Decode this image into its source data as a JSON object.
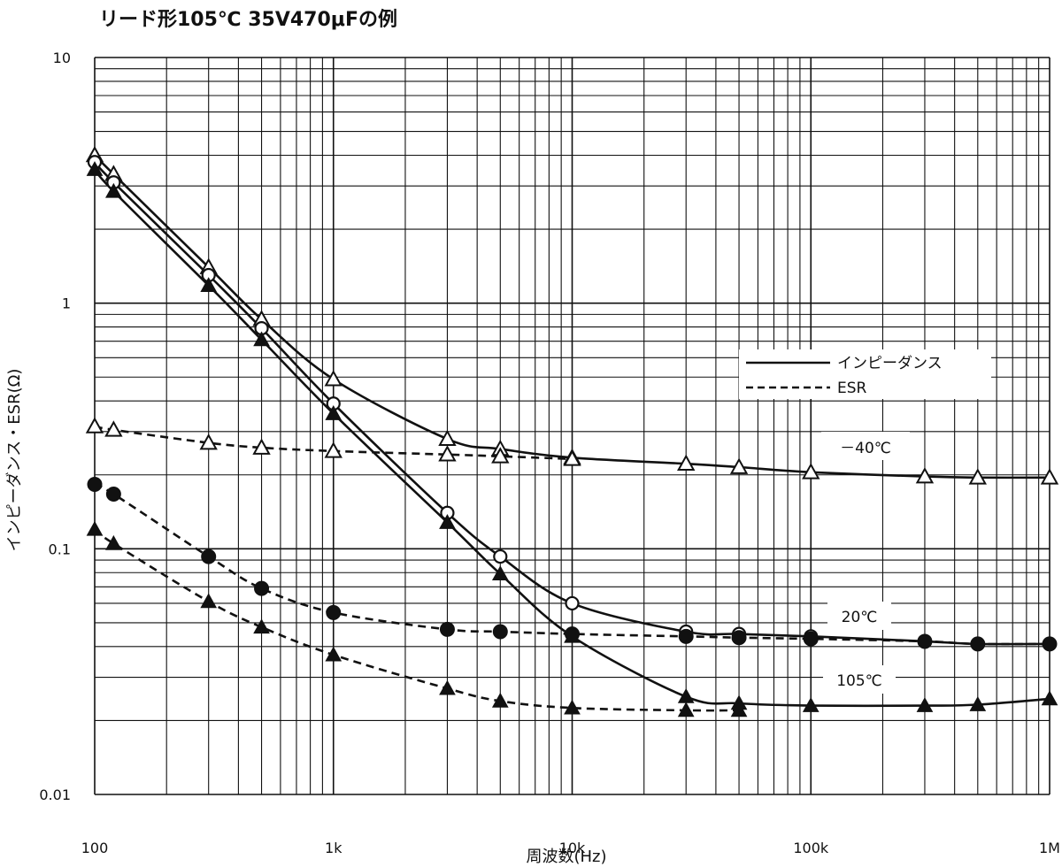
{
  "chart_data": {
    "type": "line",
    "title": "リード形105℃ 35V470μFの例",
    "xlabel": "周波数(Hz)",
    "ylabel": "インピーダンス・ESR(Ω)",
    "x_scale": "log",
    "y_scale": "log",
    "xlim": [
      100,
      1000000
    ],
    "ylim": [
      0.01,
      10
    ],
    "x_tick_values": [
      100,
      1000,
      10000,
      100000,
      1000000
    ],
    "x_tick_labels": [
      "100",
      "1k",
      "10k",
      "100k",
      "1M"
    ],
    "y_tick_values": [
      0.01,
      0.1,
      1,
      10
    ],
    "y_tick_labels": [
      "0.01",
      "0.1",
      "1",
      "10"
    ],
    "grid": true,
    "legend": {
      "position": "right",
      "entries": [
        {
          "label": "インピーダンス",
          "style": "solid"
        },
        {
          "label": "ESR",
          "style": "dashed"
        }
      ]
    },
    "annotations": [
      "－40℃",
      "20℃",
      "105℃"
    ],
    "series": [
      {
        "temperature": "－40℃",
        "kind": "impedance",
        "style": "solid",
        "marker": "triangle-open",
        "x": [
          100,
          120,
          300,
          500,
          1000,
          3000,
          5000,
          10000,
          30000,
          50000,
          100000,
          300000,
          500000,
          1000000
        ],
        "y": [
          4.0,
          3.35,
          1.4,
          0.86,
          0.49,
          0.28,
          0.255,
          0.235,
          0.222,
          0.215,
          0.205,
          0.197,
          0.195,
          0.195
        ]
      },
      {
        "temperature": "－40℃",
        "kind": "esr",
        "style": "dashed",
        "marker": "triangle-open",
        "x": [
          100,
          120,
          300,
          500,
          1000,
          3000,
          5000,
          10000
        ],
        "y": [
          0.315,
          0.305,
          0.27,
          0.258,
          0.25,
          0.242,
          0.238,
          0.232
        ]
      },
      {
        "temperature": "20℃",
        "kind": "impedance",
        "style": "solid",
        "marker": "circle-open",
        "x": [
          100,
          120,
          300,
          500,
          1000,
          3000,
          5000,
          10000,
          30000,
          50000,
          100000,
          300000,
          500000,
          1000000
        ],
        "y": [
          3.75,
          3.1,
          1.3,
          0.79,
          0.39,
          0.14,
          0.093,
          0.06,
          0.046,
          0.045,
          0.044,
          0.042,
          0.041,
          0.041
        ]
      },
      {
        "temperature": "20℃",
        "kind": "esr",
        "style": "dashed",
        "marker": "circle-filled",
        "x": [
          100,
          120,
          300,
          500,
          1000,
          3000,
          5000,
          10000,
          30000,
          50000,
          100000,
          300000,
          500000,
          1000000
        ],
        "y": [
          0.183,
          0.167,
          0.093,
          0.069,
          0.055,
          0.047,
          0.046,
          0.045,
          0.044,
          0.0435,
          0.043,
          0.042,
          0.041,
          0.041
        ]
      },
      {
        "temperature": "105℃",
        "kind": "impedance",
        "style": "solid",
        "marker": "triangle-filled",
        "x": [
          100,
          120,
          300,
          500,
          1000,
          3000,
          5000,
          10000,
          30000,
          50000,
          100000,
          300000,
          500000,
          1000000
        ],
        "y": [
          3.5,
          2.85,
          1.18,
          0.71,
          0.355,
          0.128,
          0.079,
          0.044,
          0.025,
          0.0235,
          0.023,
          0.023,
          0.0232,
          0.0245
        ]
      },
      {
        "temperature": "105℃",
        "kind": "esr",
        "style": "dashed",
        "marker": "triangle-filled",
        "x": [
          100,
          120,
          300,
          500,
          1000,
          3000,
          5000,
          10000,
          30000,
          50000
        ],
        "y": [
          0.12,
          0.105,
          0.061,
          0.048,
          0.037,
          0.027,
          0.024,
          0.0225,
          0.022,
          0.022
        ]
      }
    ]
  }
}
